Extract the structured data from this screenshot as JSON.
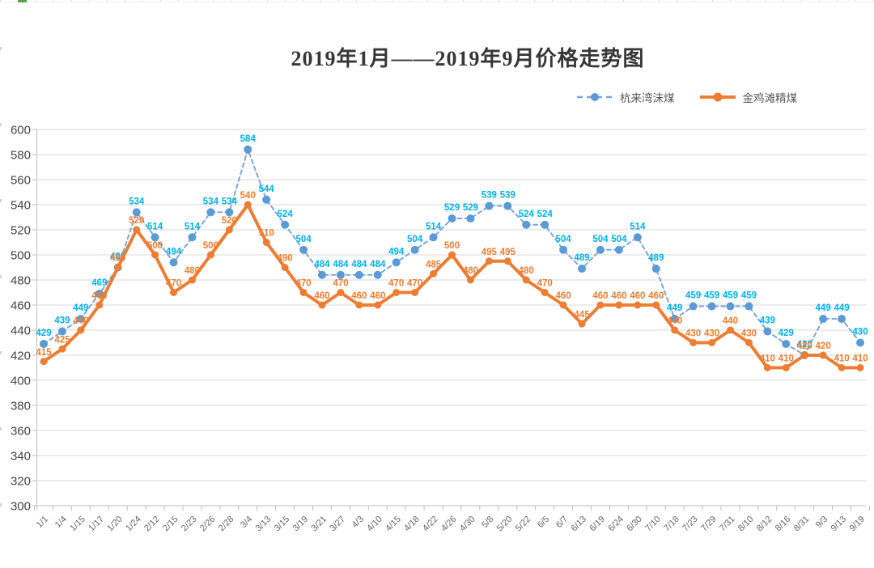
{
  "chart_data": {
    "type": "line",
    "title": "2019年1月——2019年9月价格走势图",
    "categories": [
      "1/1",
      "1/4",
      "1/15",
      "1/17",
      "1/20",
      "1/24",
      "2/12",
      "2/15",
      "2/23",
      "2/26",
      "2/28",
      "3/4",
      "3/13",
      "3/15",
      "3/19",
      "3/21",
      "3/27",
      "4/3",
      "4/10",
      "4/15",
      "4/18",
      "4/22",
      "4/26",
      "4/30",
      "5/8",
      "5/20",
      "5/22",
      "6/5",
      "6/7",
      "6/13",
      "6/19",
      "6/24",
      "6/30",
      "7/10",
      "7/18",
      "7/23",
      "7/29",
      "7/31",
      "8/10",
      "8/12",
      "8/16",
      "8/31",
      "9/3",
      "9/13",
      "9/19"
    ],
    "series": [
      {
        "name": "杭来湾沫煤",
        "line_style": "dashed",
        "line_color": "#7ea6d9",
        "marker_color": "#5b9bd5",
        "label_color": "#00b0f0",
        "values": [
          429,
          439,
          449,
          469,
          490,
          534,
          514,
          494,
          514,
          534,
          534,
          584,
          544,
          524,
          504,
          484,
          484,
          484,
          484,
          494,
          504,
          514,
          529,
          529,
          539,
          539,
          524,
          524,
          504,
          489,
          504,
          504,
          514,
          489,
          449,
          459,
          459,
          459,
          459,
          439,
          429,
          420,
          449,
          449,
          430
        ]
      },
      {
        "name": "金鸡滩精煤",
        "line_style": "solid",
        "line_color": "#ed7d31",
        "marker_color": "#ed7d31",
        "label_color": "#ed7d31",
        "values": [
          415,
          425,
          440,
          460,
          490,
          520,
          500,
          470,
          480,
          500,
          520,
          540,
          510,
          490,
          470,
          460,
          470,
          460,
          460,
          470,
          470,
          485,
          500,
          480,
          495,
          495,
          480,
          470,
          460,
          445,
          460,
          460,
          460,
          460,
          440,
          430,
          430,
          440,
          430,
          410,
          410,
          420,
          420,
          410,
          410
        ]
      }
    ],
    "ylim": [
      300,
      600
    ],
    "ytick_step": 20,
    "yticks": [
      300,
      320,
      340,
      360,
      380,
      400,
      420,
      440,
      460,
      480,
      500,
      520,
      540,
      560,
      580,
      600
    ],
    "grid": true,
    "legend_position": "top-right",
    "show_data_labels": true,
    "grid_color": "#d9d9d9",
    "axis_color": "#bfbfbf",
    "ytick_label_color": "#444444",
    "xtick_label_color": "#666666"
  }
}
